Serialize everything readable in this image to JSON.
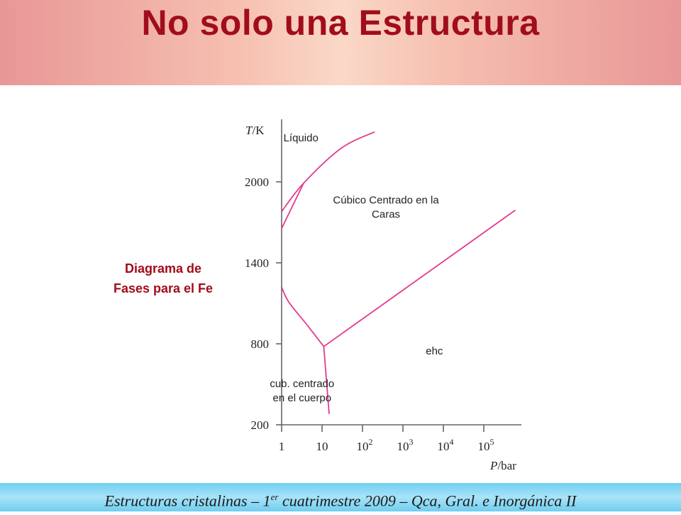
{
  "slide": {
    "title": "No solo una Estructura",
    "side_caption_line1": "Diagrama de",
    "side_caption_line2": "Fases para el Fe",
    "footer_part1": "Estructuras cristalinas – 1",
    "footer_sup": "er",
    "footer_part2": " cuatrimestre 2009 – Qca, Gral. e Inorgánica II"
  },
  "colors": {
    "title": "#a10d1a",
    "curves": "#e23b8e",
    "header_band": "#f6c0b0",
    "footer_band": "#6fcff0"
  },
  "chart_data": {
    "type": "line",
    "title": "",
    "ylabel_italic": "T",
    "ylabel_unit": "/K",
    "xlabel_italic": "P",
    "xlabel_unit": "/bar",
    "x_scale": "log",
    "xlim": [
      1,
      1000000
    ],
    "ylim": [
      200,
      2600
    ],
    "y_ticks": [
      200,
      800,
      1400,
      2000
    ],
    "y_tick_labels": [
      "200",
      "800",
      "1400",
      "2000"
    ],
    "x_ticks": [
      1,
      10,
      100,
      1000,
      10000,
      100000
    ],
    "x_tick_labels": [
      {
        "base": "1",
        "exp": ""
      },
      {
        "base": "10",
        "exp": ""
      },
      {
        "base": "10",
        "exp": "2"
      },
      {
        "base": "10",
        "exp": "3"
      },
      {
        "base": "10",
        "exp": "4"
      },
      {
        "base": "10",
        "exp": "5"
      }
    ],
    "regions": [
      {
        "lines": [
          "Líquido"
        ],
        "P": 3,
        "T": 2300
      },
      {
        "lines": [
          "Cúbico Centrado en la",
          "Caras"
        ],
        "P": 380,
        "T": 1840
      },
      {
        "lines": [
          "ehc"
        ],
        "P": 6000,
        "T": 720
      },
      {
        "lines": [
          "cub. centrado",
          "en el cuerpo"
        ],
        "P": 3.2,
        "T": 480
      }
    ],
    "boundaries": [
      {
        "name": "liquid-solid",
        "points": [
          [
            1,
            1780
          ],
          [
            3.5,
            1990
          ],
          [
            30,
            2250
          ],
          [
            200,
            2370
          ]
        ]
      },
      {
        "name": "bcc-fcc-high",
        "points": [
          [
            1,
            1655
          ],
          [
            3.5,
            1990
          ]
        ]
      },
      {
        "name": "bcc-fcc-low",
        "points": [
          [
            1,
            1220
          ],
          [
            1.5,
            1110
          ],
          [
            4,
            950
          ],
          [
            11,
            780
          ]
        ]
      },
      {
        "name": "bcc-hcp",
        "points": [
          [
            11,
            780
          ],
          [
            15,
            280
          ]
        ]
      },
      {
        "name": "fcc-hcp",
        "points": [
          [
            11,
            780
          ],
          [
            600000,
            1790
          ]
        ]
      }
    ]
  }
}
